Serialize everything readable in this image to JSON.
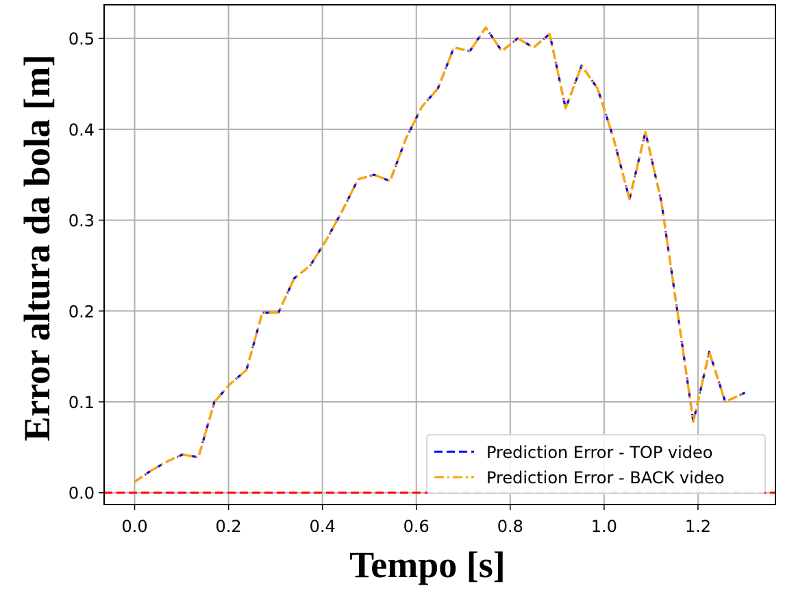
{
  "chart_data": {
    "type": "line",
    "title": "",
    "xlabel": "Tempo [s]",
    "ylabel": "Error altura da bola [m]",
    "xlim": [
      -0.065,
      1.365
    ],
    "ylim": [
      -0.013,
      0.537
    ],
    "xticks": [
      0.0,
      0.2,
      0.4,
      0.6,
      0.8,
      1.0,
      1.2
    ],
    "yticks": [
      0.0,
      0.1,
      0.2,
      0.3,
      0.4,
      0.5
    ],
    "xtick_labels": [
      "0.0",
      "0.2",
      "0.4",
      "0.6",
      "0.8",
      "1.0",
      "1.2"
    ],
    "ytick_labels": [
      "0.0",
      "0.1",
      "0.2",
      "0.3",
      "0.4",
      "0.5"
    ],
    "grid": true,
    "legend_position": "bottom-right",
    "zero_line": {
      "y": 0.0,
      "color": "#ff0000",
      "style": "dashed"
    },
    "x": [
      0.0,
      0.034,
      0.068,
      0.102,
      0.136,
      0.17,
      0.204,
      0.238,
      0.272,
      0.306,
      0.34,
      0.374,
      0.408,
      0.442,
      0.476,
      0.51,
      0.544,
      0.578,
      0.612,
      0.646,
      0.68,
      0.714,
      0.748,
      0.782,
      0.816,
      0.85,
      0.884,
      0.918,
      0.952,
      0.986,
      1.02,
      1.054,
      1.088,
      1.122,
      1.156,
      1.19,
      1.224,
      1.258,
      1.3
    ],
    "series": [
      {
        "name": "Prediction Error - TOP video",
        "color": "#0000ff",
        "style": "dashed",
        "values": [
          0.012,
          0.024,
          0.034,
          0.042,
          0.039,
          0.1,
          0.12,
          0.135,
          0.198,
          0.198,
          0.236,
          0.25,
          0.278,
          0.31,
          0.345,
          0.35,
          0.343,
          0.39,
          0.425,
          0.445,
          0.49,
          0.486,
          0.512,
          0.486,
          0.5,
          0.49,
          0.505,
          0.423,
          0.47,
          0.445,
          0.39,
          0.323,
          0.397,
          0.32,
          0.2,
          0.078,
          0.155,
          0.1,
          0.11
        ]
      },
      {
        "name": "Prediction Error - BACK video",
        "color": "#ffa500",
        "style": "dashdot",
        "values": [
          0.012,
          0.024,
          0.034,
          0.042,
          0.039,
          0.1,
          0.12,
          0.135,
          0.198,
          0.198,
          0.236,
          0.25,
          0.278,
          0.31,
          0.345,
          0.35,
          0.343,
          0.39,
          0.425,
          0.445,
          0.49,
          0.486,
          0.512,
          0.486,
          0.5,
          0.49,
          0.505,
          0.423,
          0.47,
          0.445,
          0.39,
          0.323,
          0.397,
          0.32,
          0.2,
          0.078,
          0.155,
          0.1,
          0.11
        ]
      }
    ]
  }
}
